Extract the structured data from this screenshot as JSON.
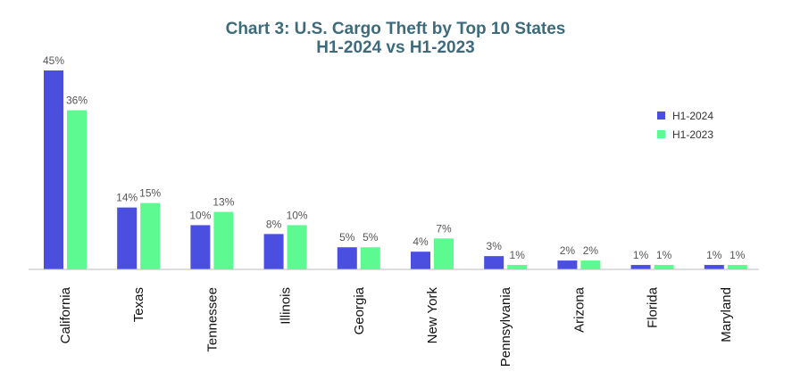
{
  "chart_data": {
    "type": "bar",
    "title_line1": "Chart 3: U.S. Cargo Theft by Top 10 States",
    "title_line2": "H1-2024 vs H1-2023",
    "categories": [
      "California",
      "Texas",
      "Tennessee",
      "Illinois",
      "Georgia",
      "New York",
      "Pennsylvania",
      "Arizona",
      "Florida",
      "Maryland"
    ],
    "series": [
      {
        "name": "H1-2024",
        "values": [
          45,
          14,
          10,
          8,
          5,
          4,
          3,
          2,
          1,
          1
        ],
        "labels": [
          "45%",
          "14%",
          "10%",
          "8%",
          "5%",
          "4%",
          "3%",
          "2%",
          "1%",
          "1%"
        ]
      },
      {
        "name": "H1-2023",
        "values": [
          36,
          15,
          13,
          10,
          5,
          7,
          1,
          2,
          1,
          1
        ],
        "labels": [
          "36%",
          "15%",
          "13%",
          "10%",
          "5%",
          "7%",
          "1%",
          "2%",
          "1%",
          "1%"
        ]
      }
    ],
    "xlabel": "",
    "ylabel": "",
    "ylim": [
      0,
      45
    ],
    "legend_position": "right",
    "grid": false
  },
  "colors": {
    "title": "#3d6b7c",
    "series_2024": "#4a4fe0",
    "series_2023": "#5cfa90",
    "axis": "#bbbbbb"
  }
}
